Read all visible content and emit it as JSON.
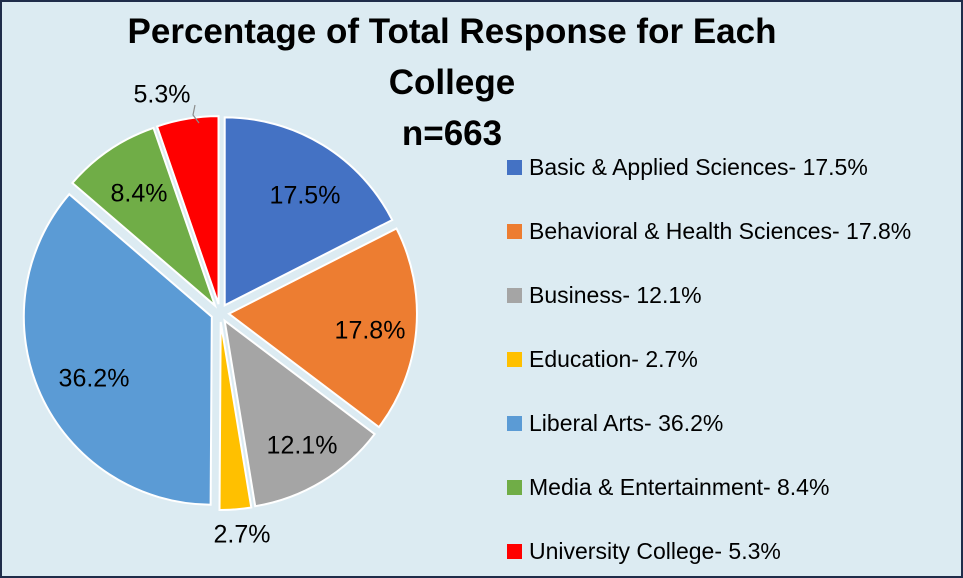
{
  "chart_data": {
    "type": "pie",
    "title_lines": [
      "Percentage of Total Response for Each",
      "College"
    ],
    "subtitle": "n=663",
    "slices": [
      {
        "label": "Basic & Applied Sciences- 17.5%",
        "value": 17.5,
        "data_label": "17.5%",
        "color": "#4472c4"
      },
      {
        "label": "Behavioral & Health Sciences- 17.8%",
        "value": 17.8,
        "data_label": "17.8%",
        "color": "#ed7d31"
      },
      {
        "label": "Business- 12.1%",
        "value": 12.1,
        "data_label": "12.1%",
        "color": "#a5a5a5"
      },
      {
        "label": "Education- 2.7%",
        "value": 2.7,
        "data_label": "2.7%",
        "color": "#ffc000"
      },
      {
        "label": "Liberal Arts- 36.2%",
        "value": 36.2,
        "data_label": "36.2%",
        "color": "#5b9bd5"
      },
      {
        "label": "Media & Entertainment- 8.4%",
        "value": 8.4,
        "data_label": "8.4%",
        "color": "#70ad47"
      },
      {
        "label": "University College- 5.3%",
        "value": 5.3,
        "data_label": "5.3%",
        "color": "#ff0000"
      }
    ],
    "legend_position": "right",
    "background_color": "#dcebf2",
    "border_color": "#1f2d4a"
  }
}
